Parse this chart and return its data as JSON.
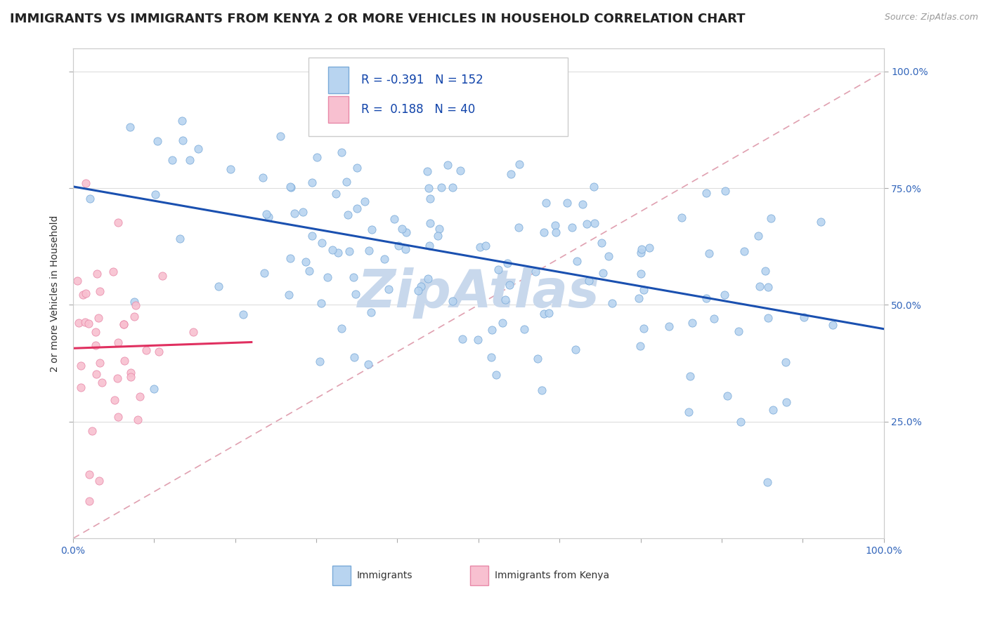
{
  "title": "IMMIGRANTS VS IMMIGRANTS FROM KENYA 2 OR MORE VEHICLES IN HOUSEHOLD CORRELATION CHART",
  "source_text": "Source: ZipAtlas.com",
  "ylabel": "2 or more Vehicles in Household",
  "xlim": [
    0.0,
    1.0
  ],
  "ylim": [
    0.0,
    1.05
  ],
  "xtick_labels": [
    "0.0%",
    "100.0%"
  ],
  "ytick_labels": [
    "25.0%",
    "50.0%",
    "75.0%",
    "100.0%"
  ],
  "ytick_positions": [
    0.25,
    0.5,
    0.75,
    1.0
  ],
  "legend_label1": "Immigrants",
  "legend_label2": "Immigrants from Kenya",
  "R1": -0.391,
  "N1": 152,
  "R2": 0.188,
  "N2": 40,
  "scatter1_color": "#b8d4f0",
  "scatter1_edge": "#7aaad8",
  "scatter2_color": "#f8c0d0",
  "scatter2_edge": "#e888a8",
  "line1_color": "#1a50b0",
  "line2_color": "#e03060",
  "dashed_line_color": "#e0a0b0",
  "watermark_color": "#c8d8ec",
  "title_fontsize": 13,
  "axis_label_fontsize": 10,
  "tick_fontsize": 10,
  "legend_fontsize": 12,
  "background_color": "#ffffff",
  "seed": 7
}
